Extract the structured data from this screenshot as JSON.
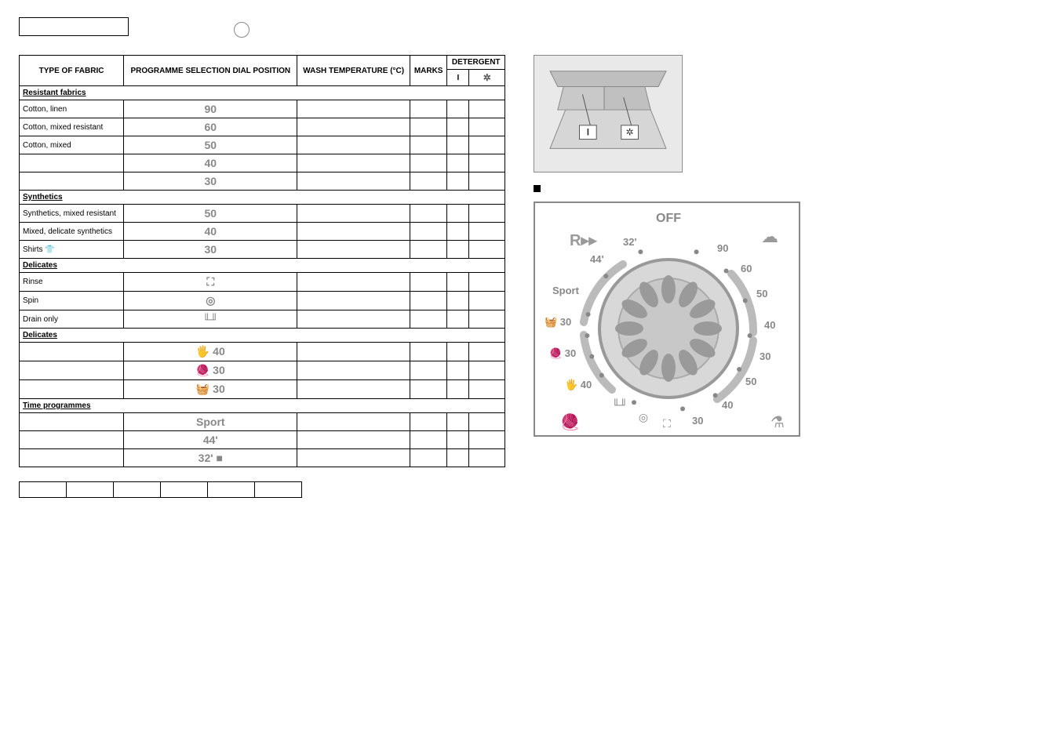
{
  "page_frame": {
    "lang_label": ""
  },
  "table": {
    "headers": {
      "type": "TYPE OF FABRIC",
      "dial": "PROGRAMME SELECTION DIAL POSITION",
      "temp": "WASH TEMPERATURE (°C)",
      "marks": "MARKS",
      "detergent_group": "DETERGENT",
      "det_main": "I",
      "det_soft": "✲"
    },
    "sections": [
      {
        "title": "Resistant fabrics",
        "rows": [
          {
            "fabric": "Cotton, linen",
            "dial": "90",
            "temp": "",
            "marks": "",
            "d1": "",
            "d2": ""
          },
          {
            "fabric": "Cotton, mixed resistant",
            "dial": "60",
            "temp": "",
            "marks": "",
            "d1": "",
            "d2": ""
          },
          {
            "fabric": "Cotton, mixed",
            "dial": "50",
            "temp": "",
            "marks": "",
            "d1": "",
            "d2": ""
          },
          {
            "fabric": "",
            "dial": "40",
            "temp": "",
            "marks": "",
            "d1": "",
            "d2": ""
          },
          {
            "fabric": "",
            "dial": "30",
            "temp": "",
            "marks": "",
            "d1": "",
            "d2": ""
          }
        ]
      },
      {
        "title": "Synthetics",
        "rows": [
          {
            "fabric": "Synthetics, mixed resistant",
            "dial": "50",
            "temp": "",
            "marks": "",
            "d1": "",
            "d2": ""
          },
          {
            "fabric": "Mixed, delicate synthetics",
            "dial": "40",
            "temp": "",
            "marks": "",
            "d1": "",
            "d2": ""
          }
        ]
      },
      {
        "title": "",
        "rows": [
          {
            "fabric": "Shirts 👕",
            "dial": "30",
            "temp": "",
            "marks": "",
            "d1": "",
            "d2": ""
          }
        ]
      },
      {
        "title": "Delicates",
        "rows": [
          {
            "fabric": "Rinse",
            "dial": "⛶",
            "temp": "",
            "marks": "",
            "d1": "",
            "d2": ""
          },
          {
            "fabric": "Spin",
            "dial": "◎",
            "temp": "",
            "marks": "",
            "d1": "",
            "d2": ""
          },
          {
            "fabric": "Drain only",
            "dial": "╙╜",
            "temp": "",
            "marks": "",
            "d1": "",
            "d2": ""
          }
        ]
      },
      {
        "title": "Delicates",
        "rows": [
          {
            "fabric": "",
            "dial": "🖐 40",
            "temp": "",
            "marks": "",
            "d1": "",
            "d2": ""
          },
          {
            "fabric": "",
            "dial": "🧶 30",
            "temp": "",
            "marks": "",
            "d1": "",
            "d2": ""
          },
          {
            "fabric": "",
            "dial": "🧺 30",
            "temp": "",
            "marks": "",
            "d1": "",
            "d2": ""
          }
        ]
      },
      {
        "title": "Time programmes",
        "rows": [
          {
            "fabric": "",
            "dial": "Sport",
            "temp": "",
            "marks": "",
            "d1": "",
            "d2": ""
          },
          {
            "fabric": "",
            "dial": "44'",
            "temp": "",
            "marks": "",
            "d1": "",
            "d2": ""
          },
          {
            "fabric": "",
            "dial": "32' ■",
            "temp": "",
            "marks": "",
            "d1": "",
            "d2": ""
          }
        ]
      }
    ],
    "tabs": [
      "",
      "",
      "",
      "",
      "",
      ""
    ]
  },
  "right": {
    "drawer_label_1": "I",
    "drawer_label_2": "✲",
    "heading1": "",
    "para1": "",
    "heading2": "",
    "para2": "",
    "bullet1": "",
    "dial": {
      "off": "OFF",
      "labels": [
        "90",
        "60",
        "50",
        "40",
        "30",
        "50",
        "40",
        "30",
        "🧺 30",
        "🧶 30",
        "🖐 40",
        "Sport",
        "44'",
        "32'"
      ],
      "sym_left_top": "R▸▸",
      "sym_right_top": "☁",
      "sym_left_bottom": "🧶",
      "sym_right_bottom": "⚗",
      "sym_bottom_1": "╙╜",
      "sym_bottom_2": "◎",
      "sym_bottom_3": "⛶"
    },
    "colors": {
      "grey": "#9a9a9a",
      "light": "#cfcfcf"
    }
  },
  "footer": {
    "left": "",
    "right": ""
  }
}
